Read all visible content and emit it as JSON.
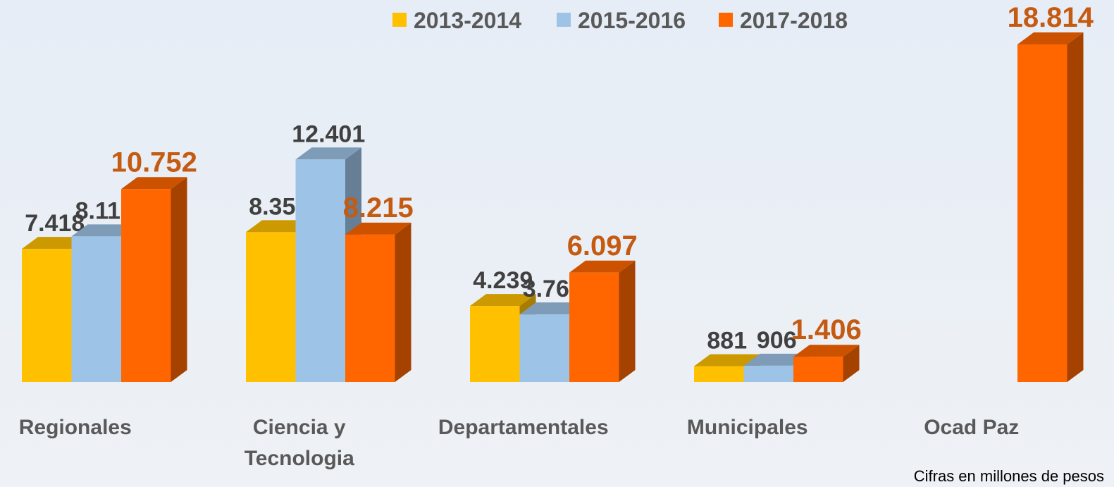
{
  "chart_data": {
    "type": "bar",
    "categories": [
      "Regionales",
      "Ciencia y Tecnologia",
      "Departamentales",
      "Municipales",
      "Ocad Paz"
    ],
    "series": [
      {
        "name": "2013-2014",
        "color": "#ffc000",
        "values": [
          7418,
          8351,
          4239,
          881,
          null
        ],
        "value_labels": [
          "7.418",
          "8.351",
          "4.239",
          "881",
          null
        ]
      },
      {
        "name": "2015-2016",
        "color": "#9dc3e6",
        "values": [
          8116,
          12401,
          3765,
          906,
          null
        ],
        "value_labels": [
          "8.116",
          "12.401",
          "3.765",
          "906",
          null
        ]
      },
      {
        "name": "2017-2018",
        "color": "#ff6600",
        "values": [
          10752,
          8215,
          6097,
          1406,
          18814
        ],
        "value_labels": [
          "10.752",
          "8.215",
          "6.097",
          "1.406",
          "18.814"
        ]
      }
    ],
    "note": "Cifras en millones de pesos",
    "legend": "top"
  }
}
